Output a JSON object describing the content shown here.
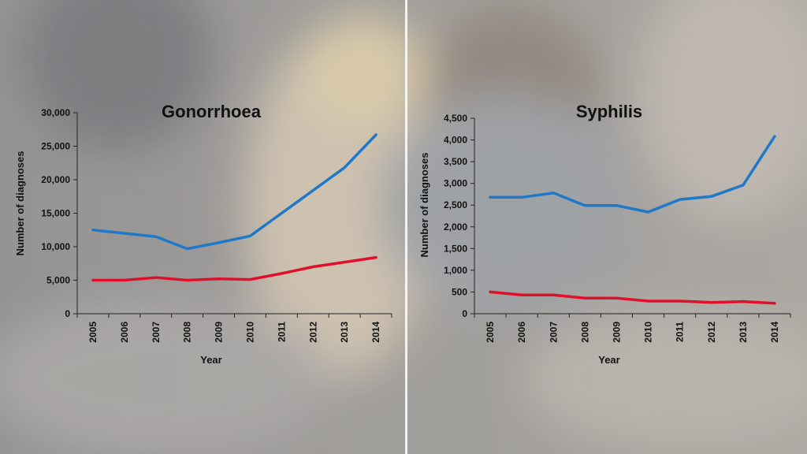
{
  "chart_data": [
    {
      "type": "line",
      "title": "Gonorrhoea",
      "xlabel": "Year",
      "ylabel": "Number of diagnoses",
      "x": [
        "2005",
        "2006",
        "2007",
        "2008",
        "2009",
        "2010",
        "2011",
        "2012",
        "2013",
        "2014"
      ],
      "ylim": [
        0,
        30000
      ],
      "yticks": [
        0,
        5000,
        10000,
        15000,
        20000,
        25000,
        30000
      ],
      "ytick_labels": [
        "0",
        "5,000",
        "10,000",
        "15,000",
        "20,000",
        "25,000",
        "30,000"
      ],
      "grid": false,
      "series": [
        {
          "color": "#1f78c8",
          "values": [
            12500,
            12000,
            11500,
            9700,
            10600,
            11600,
            15000,
            18400,
            21800,
            26700
          ]
        },
        {
          "color": "#e0102a",
          "values": [
            5000,
            5000,
            5400,
            5000,
            5200,
            5100,
            6000,
            7000,
            7700,
            8400
          ]
        }
      ]
    },
    {
      "type": "line",
      "title": "Syphilis",
      "xlabel": "Year",
      "ylabel": "Number of diagnoses",
      "x": [
        "2005",
        "2006",
        "2007",
        "2008",
        "2009",
        "2010",
        "2011",
        "2012",
        "2013",
        "2014"
      ],
      "ylim": [
        0,
        4500
      ],
      "yticks": [
        0,
        500,
        1000,
        1500,
        2000,
        2500,
        3000,
        3500,
        4000,
        4500
      ],
      "ytick_labels": [
        "0",
        "500",
        "1,000",
        "1,500",
        "2,000",
        "2,500",
        "3,000",
        "3,500",
        "4,000",
        "4,500"
      ],
      "grid": false,
      "series": [
        {
          "color": "#1f78c8",
          "values": [
            2680,
            2680,
            2780,
            2490,
            2490,
            2340,
            2630,
            2700,
            2960,
            4080
          ]
        },
        {
          "color": "#e0102a",
          "values": [
            500,
            430,
            430,
            360,
            360,
            290,
            290,
            260,
            280,
            240
          ]
        }
      ]
    }
  ]
}
